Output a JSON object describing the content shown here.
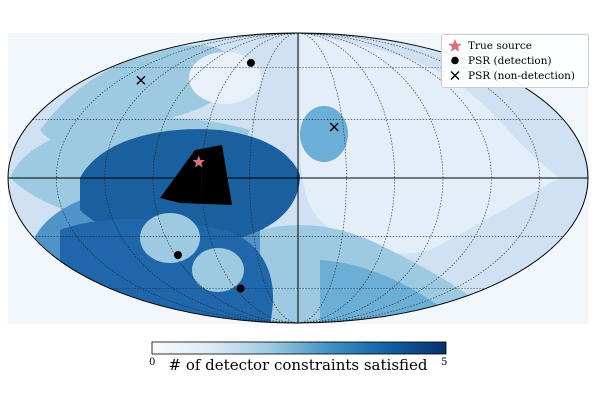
{
  "chart_data": {
    "type": "heatmap",
    "projection": "mollweide",
    "grid": true,
    "colormap": "Blues",
    "colorbar": {
      "label": "# of detector constraints satisfied",
      "min": 0,
      "max": 5,
      "min_label": "0",
      "max_label": "5"
    },
    "legend": {
      "placement": "top-right",
      "entries": [
        {
          "label": "True source",
          "marker": "star",
          "color": "#d9707a"
        },
        {
          "label": "PSR (detection)",
          "marker": "circle",
          "color": "#000000"
        },
        {
          "label": "PSR (non-detection)",
          "marker": "x",
          "color": "#000000"
        }
      ]
    },
    "true_source": {
      "lon": -62,
      "lat": 8
    },
    "psr_detection": [
      {
        "lon": -48,
        "lat": 63
      },
      {
        "lon": -88,
        "lat": -40
      },
      {
        "lon": -55,
        "lat": -60
      }
    ],
    "psr_non_detection": [
      {
        "lon": -132,
        "lat": 52
      },
      {
        "lon": 24,
        "lat": 26
      }
    ],
    "regions": [
      {
        "value": 1,
        "lon": [
          -180,
          -30
        ],
        "lat": [
          -90,
          15
        ]
      },
      {
        "value": 2,
        "lon": [
          -180,
          -20
        ],
        "lat": [
          -90,
          -5
        ]
      },
      {
        "value": 3,
        "lon": [
          -160,
          -20
        ],
        "lat": [
          -90,
          -15
        ]
      },
      {
        "value": 4,
        "lon": [
          -100,
          -30
        ],
        "lat": [
          -25,
          20
        ]
      },
      {
        "value": 5,
        "lon": [
          -85,
          -40
        ],
        "lat": [
          -15,
          18
        ]
      }
    ]
  }
}
